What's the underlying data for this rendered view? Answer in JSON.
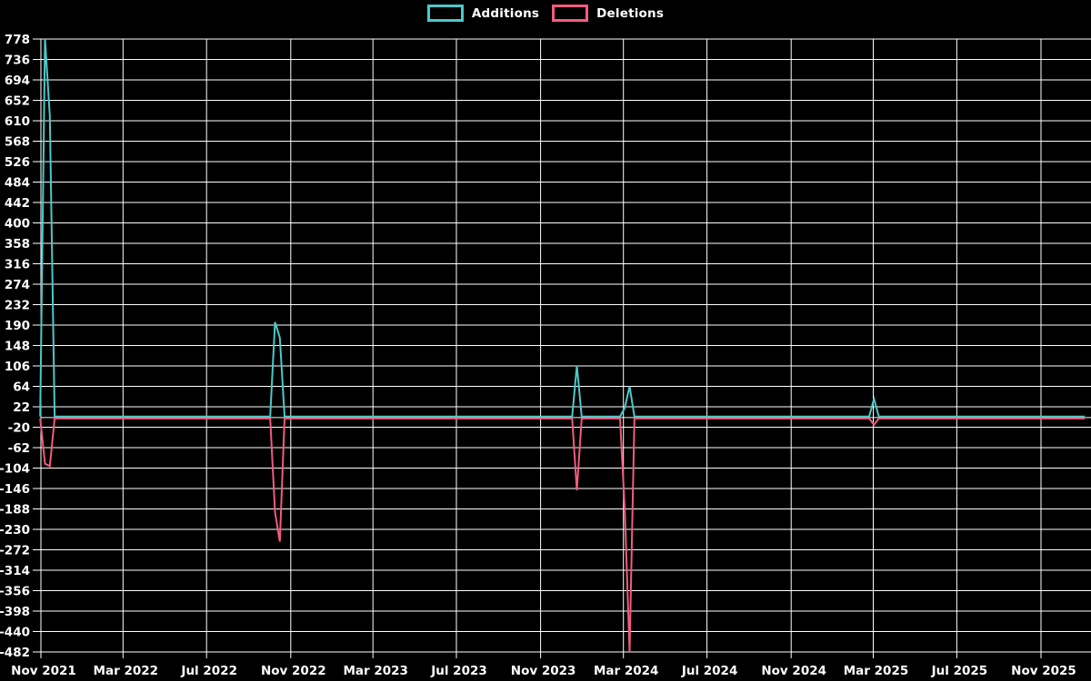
{
  "legend": {
    "items": [
      {
        "label": "Additions",
        "color": "#4dc8c8"
      },
      {
        "label": "Deletions",
        "color": "#f05c7e"
      }
    ]
  },
  "chart_data": {
    "type": "line",
    "title": "",
    "legend_position": "top",
    "background": "#000000",
    "grid": true,
    "grid_color": "#ffffff",
    "zero_line_color": "#ffffff",
    "text_color": "#ffffff",
    "x_axis": {
      "type": "time",
      "tick_labels": [
        "Nov 2021",
        "Mar 2022",
        "Jul 2022",
        "Nov 2022",
        "Mar 2023",
        "Jul 2023",
        "Nov 2023",
        "Mar 2024",
        "Jul 2024",
        "Nov 2024",
        "Mar 2025",
        "Jul 2025",
        "Nov 2025"
      ],
      "tick_dates": [
        "2021-11-01",
        "2022-03-01",
        "2022-07-01",
        "2022-11-01",
        "2023-03-01",
        "2023-07-01",
        "2023-11-01",
        "2024-03-01",
        "2024-07-01",
        "2024-11-01",
        "2025-03-01",
        "2025-07-01",
        "2025-11-01"
      ]
    },
    "y_axis": {
      "min": -482,
      "max": 778,
      "tick_step": 42,
      "ticks": [
        778,
        736,
        694,
        652,
        610,
        568,
        526,
        484,
        442,
        400,
        358,
        316,
        274,
        232,
        190,
        148,
        106,
        64,
        22,
        -20,
        -62,
        -104,
        -146,
        -188,
        -230,
        -272,
        -314,
        -356,
        -398,
        -440,
        -482
      ]
    },
    "series": [
      {
        "name": "Additions",
        "color": "#4dc8c8",
        "points": [
          [
            "2021-10-31",
            2
          ],
          [
            "2021-11-07",
            778
          ],
          [
            "2021-11-14",
            620
          ],
          [
            "2021-11-21",
            2
          ],
          [
            "2022-10-02",
            2
          ],
          [
            "2022-10-09",
            196
          ],
          [
            "2022-10-16",
            164
          ],
          [
            "2022-10-23",
            2
          ],
          [
            "2023-12-17",
            2
          ],
          [
            "2023-12-24",
            106
          ],
          [
            "2023-12-31",
            2
          ],
          [
            "2024-02-25",
            2
          ],
          [
            "2024-03-03",
            20
          ],
          [
            "2024-03-10",
            64
          ],
          [
            "2024-03-17",
            2
          ],
          [
            "2025-02-23",
            2
          ],
          [
            "2025-03-02",
            38
          ],
          [
            "2025-03-09",
            2
          ],
          [
            "2026-01-04",
            2
          ]
        ]
      },
      {
        "name": "Deletions",
        "color": "#f05c7e",
        "points": [
          [
            "2021-10-31",
            -2
          ],
          [
            "2021-11-07",
            -95
          ],
          [
            "2021-11-14",
            -100
          ],
          [
            "2021-11-21",
            -2
          ],
          [
            "2022-10-02",
            -2
          ],
          [
            "2022-10-09",
            -195
          ],
          [
            "2022-10-16",
            -255
          ],
          [
            "2022-10-23",
            -2
          ],
          [
            "2023-12-17",
            -2
          ],
          [
            "2023-12-24",
            -150
          ],
          [
            "2023-12-31",
            -2
          ],
          [
            "2024-02-25",
            -2
          ],
          [
            "2024-03-03",
            -190
          ],
          [
            "2024-03-10",
            -482
          ],
          [
            "2024-03-17",
            -2
          ],
          [
            "2025-02-23",
            -2
          ],
          [
            "2025-03-02",
            -15
          ],
          [
            "2025-03-09",
            -2
          ],
          [
            "2026-01-04",
            -2
          ]
        ]
      }
    ]
  }
}
